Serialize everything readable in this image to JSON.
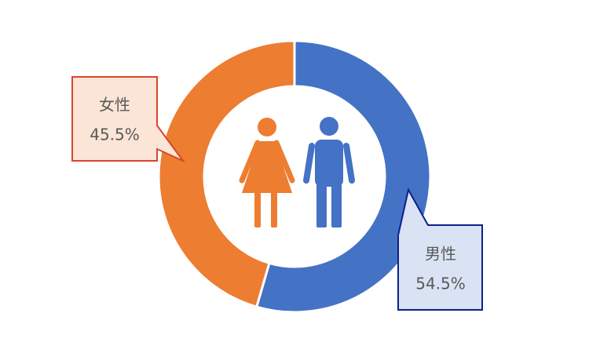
{
  "chart_data": {
    "type": "donut",
    "categories": [
      "男性",
      "女性"
    ],
    "values": [
      54.5,
      45.5
    ],
    "value_labels": [
      "54.5%",
      "45.5%"
    ],
    "colors": [
      "#4472c4",
      "#ed7d31"
    ]
  }
}
